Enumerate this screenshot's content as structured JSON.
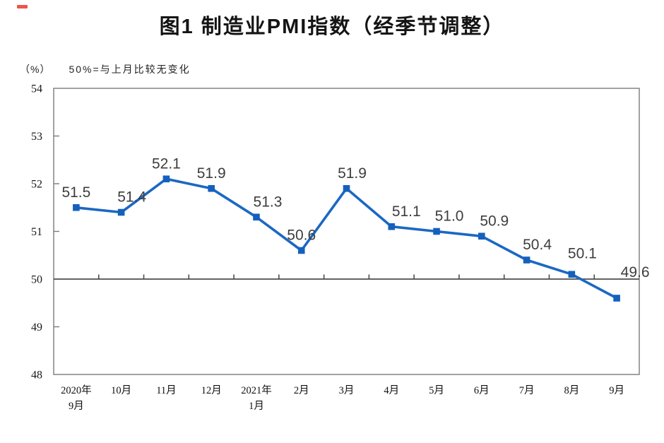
{
  "artifacts": {
    "red_mark": "red-scan-mark"
  },
  "chart_data": {
    "type": "line",
    "title": "图1 制造业PMI指数（经季节调整）",
    "unit_label": "（%）",
    "note": "50%=与上月比较无变化",
    "categories": [
      [
        "2020年",
        "9月"
      ],
      [
        "10月"
      ],
      [
        "11月"
      ],
      [
        "12月"
      ],
      [
        "2021年",
        "1月"
      ],
      [
        "2月"
      ],
      [
        "3月"
      ],
      [
        "4月"
      ],
      [
        "5月"
      ],
      [
        "6月"
      ],
      [
        "7月"
      ],
      [
        "8月"
      ],
      [
        "9月"
      ]
    ],
    "values": [
      51.5,
      51.4,
      52.1,
      51.9,
      51.3,
      50.6,
      51.9,
      51.1,
      51.0,
      50.9,
      50.4,
      50.1,
      49.6
    ],
    "data_labels": [
      "51.5",
      "51.4",
      "52.1",
      "51.9",
      "51.3",
      "50.6",
      "51.9",
      "51.1",
      "51.0",
      "50.9",
      "50.4",
      "50.1",
      "49.6"
    ],
    "ylim": [
      48,
      54
    ],
    "y_ticks": [
      48,
      49,
      50,
      51,
      52,
      53,
      54
    ],
    "reference_line": 50,
    "grid": false,
    "legend": false,
    "line_color": "#1b68c3",
    "marker_color": "#1560bd",
    "axis_color": "#7a7a7a",
    "reference_line_color": "#4d4d4d",
    "label_color": "#3d3d3d"
  }
}
